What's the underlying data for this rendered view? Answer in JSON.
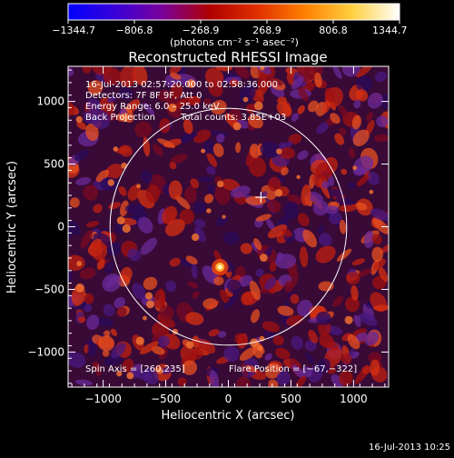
{
  "colorbar": {
    "ticks": [
      {
        "value": -1344.7,
        "label": "−1344.7"
      },
      {
        "value": -806.8,
        "label": "−806.8"
      },
      {
        "value": -268.9,
        "label": "−268.9"
      },
      {
        "value": 268.9,
        "label": "268.9"
      },
      {
        "value": 806.8,
        "label": "806.8"
      },
      {
        "value": 1344.7,
        "label": "1344.7"
      }
    ],
    "range": [
      -1344.7,
      1344.7
    ],
    "unit_text": "(photons cm⁻² s⁻¹ asec⁻²)",
    "gradient_stops": [
      "#0000ff",
      "#3a00d8",
      "#7a0099",
      "#b00000",
      "#e03000",
      "#ff8000",
      "#ffd040",
      "#ffffff"
    ]
  },
  "chart_data": {
    "type": "heatmap",
    "title": "Reconstructed RHESSI Image",
    "xlabel": "Heliocentric X (arcsec)",
    "ylabel": "Heliocentric Y (arcsec)",
    "xlim": [
      -1280,
      1280
    ],
    "ylim": [
      -1280,
      1280
    ],
    "xticks": [
      {
        "value": -1000,
        "label": "−1000"
      },
      {
        "value": -500,
        "label": "−500"
      },
      {
        "value": 0,
        "label": "0"
      },
      {
        "value": 500,
        "label": "500"
      },
      {
        "value": 1000,
        "label": "1000"
      }
    ],
    "yticks": [
      {
        "value": 1000,
        "label": "1000"
      },
      {
        "value": 500,
        "label": "500"
      },
      {
        "value": 0,
        "label": "0"
      },
      {
        "value": -500,
        "label": "−500"
      },
      {
        "value": -1000,
        "label": "−1000"
      }
    ],
    "solar_limb_radius": 945,
    "flare_position": [
      -67,
      -322
    ],
    "spin_axis": [
      260,
      235
    ],
    "annotations": {
      "time_range": "16-Jul-2013 02:57:20.000 to 02:58:36.000",
      "detectors": "Detectors: 7F 8F 9F, Att 0",
      "energy": "Energy Range: 6.0 – 25.0 keV",
      "method": "Back Projection",
      "counts": "Total counts: 3.85E+03",
      "spin_axis_label": "Spin Axis = [260,235]",
      "flare_label": "Flare Position = [−67,−322]"
    }
  },
  "footer": {
    "timestamp": "16-Jul-2013 10:25"
  }
}
